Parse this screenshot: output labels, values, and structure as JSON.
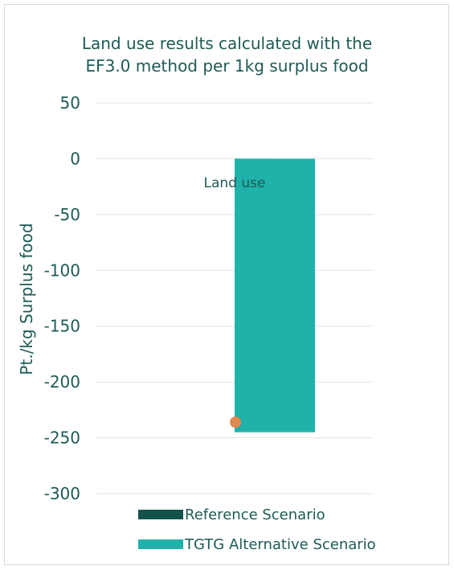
{
  "chart_data": {
    "type": "bar",
    "title_lines": [
      "Land use results calculated with the",
      "EF3.0 method per 1kg surplus food"
    ],
    "ylabel": "Pt./kg Surplus food",
    "category_label": "Land use",
    "ylim": [
      -300,
      50
    ],
    "yticks": [
      50,
      0,
      -50,
      -100,
      -150,
      -200,
      -250,
      -300
    ],
    "grid": true,
    "legend_position": "bottom",
    "series": [
      {
        "name": "Reference Scenario",
        "color": "#13524d",
        "values": [
          0
        ]
      },
      {
        "name": "TGTG Alternative Scenario",
        "color": "#20b2aa",
        "values": [
          -245
        ]
      }
    ],
    "marker": {
      "value": -236,
      "color": "#e08a4e"
    }
  }
}
